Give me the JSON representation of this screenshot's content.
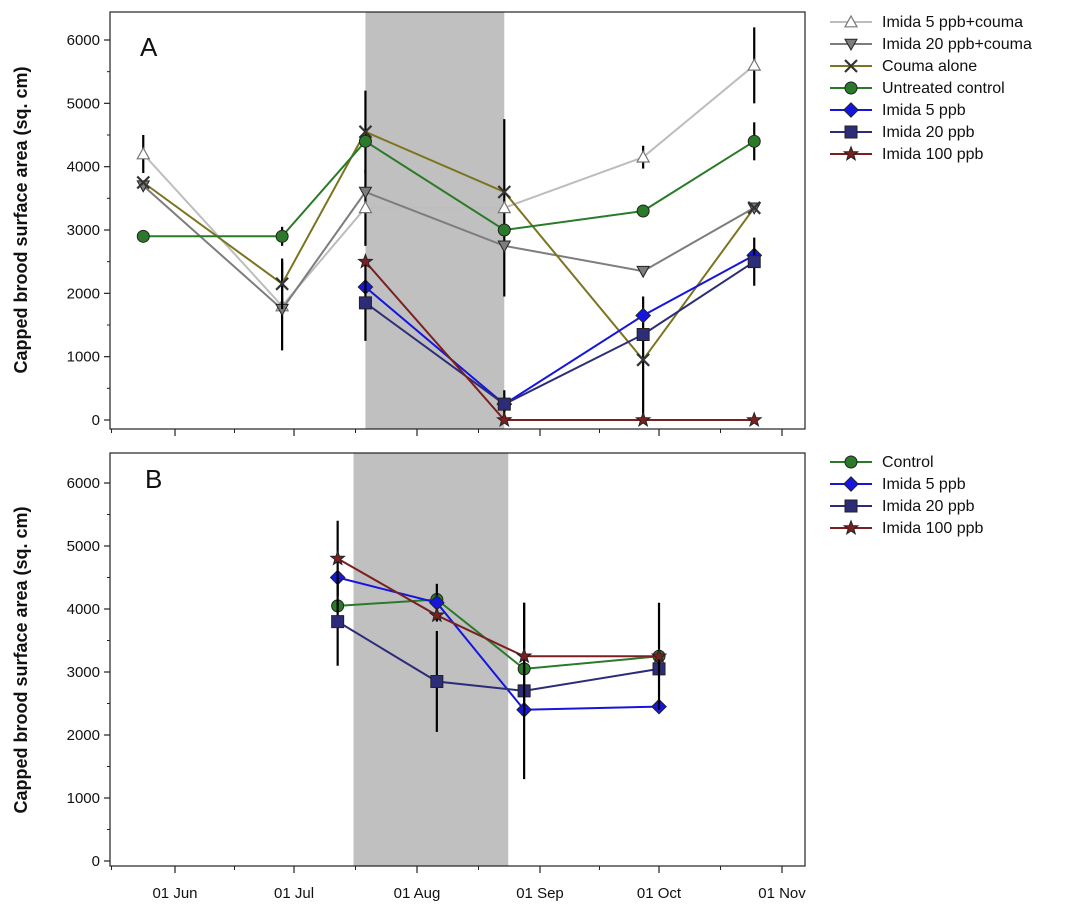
{
  "chart_data": [
    {
      "panel": "A",
      "type": "line",
      "ylabel": "Capped brood surface area (sq. cm)",
      "xlabel": "",
      "ylim": [
        0,
        6000
      ],
      "y_ticks": [
        "0",
        "1000",
        "2000",
        "3000",
        "4000",
        "5000",
        "6000"
      ],
      "x_ticks": [
        "01 Jun",
        "01 Jul",
        "01 Aug",
        "01 Sep",
        "01 Oct",
        "01 Nov"
      ],
      "x_tick_dates": [
        "2013-06-01",
        "2013-07-01",
        "2013-08-01",
        "2013-09-01",
        "2013-10-01",
        "2013-11-01"
      ],
      "shaded_period": [
        "2013-07-19",
        "2013-08-23"
      ],
      "legend_position": "right",
      "grid": false,
      "series": [
        {
          "name": "Imida 5 ppb+couma",
          "color": "#bdbdbd",
          "marker": "triangle-up-open",
          "x": [
            "2013-05-24",
            "2013-06-28",
            "2013-07-19",
            "2013-08-23",
            "2013-09-27",
            "2013-10-25"
          ],
          "y": [
            4200,
            1800,
            3350,
            3350,
            4150,
            5600
          ],
          "err": [
            300,
            700,
            600,
            1400,
            180,
            600
          ]
        },
        {
          "name": "Imida 20 ppb+couma",
          "color": "#7d7d7d",
          "marker": "triangle-down",
          "x": [
            "2013-05-24",
            "2013-06-28",
            "2013-07-19",
            "2013-08-23",
            "2013-09-27",
            "2013-10-25"
          ],
          "y": [
            3700,
            1750,
            3600,
            2750,
            2350,
            3350
          ],
          "err": [
            0,
            0,
            0,
            0,
            0,
            0
          ]
        },
        {
          "name": "Couma alone",
          "color": "#7b7421",
          "marker": "x",
          "x": [
            "2013-05-24",
            "2013-06-28",
            "2013-07-19",
            "2013-08-23",
            "2013-09-27",
            "2013-10-25"
          ],
          "y": [
            3750,
            2150,
            4550,
            3600,
            950,
            3350
          ],
          "err": [
            0,
            400,
            650,
            0,
            1000,
            0
          ]
        },
        {
          "name": "Untreated control",
          "color": "#2a7a2a",
          "marker": "circle",
          "x": [
            "2013-05-24",
            "2013-06-28",
            "2013-07-19",
            "2013-08-23",
            "2013-09-27",
            "2013-10-25"
          ],
          "y": [
            2900,
            2900,
            4400,
            3000,
            3300,
            4400
          ],
          "err": [
            0,
            150,
            0,
            0,
            0,
            300
          ]
        },
        {
          "name": "Imida 5 ppb",
          "color": "#1515e0",
          "marker": "diamond",
          "x": [
            "2013-07-19",
            "2013-08-23",
            "2013-09-27",
            "2013-10-25"
          ],
          "y": [
            2100,
            250,
            1650,
            2600
          ],
          "err": [
            0,
            0,
            0,
            0
          ]
        },
        {
          "name": "Imida 20 ppb",
          "color": "#2c2c78",
          "marker": "square",
          "x": [
            "2013-07-19",
            "2013-08-23",
            "2013-09-27",
            "2013-10-25"
          ],
          "y": [
            1850,
            250,
            1350,
            2500
          ],
          "err": [
            600,
            220,
            0,
            380
          ]
        },
        {
          "name": "Imida 100 ppb",
          "color": "#7a2020",
          "marker": "star",
          "x": [
            "2013-07-19",
            "2013-08-23",
            "2013-09-27",
            "2013-10-25"
          ],
          "y": [
            2500,
            0,
            0,
            0
          ],
          "err": [
            0,
            0,
            0,
            0
          ]
        }
      ]
    },
    {
      "panel": "B",
      "type": "line",
      "ylabel": "Capped brood surface area (sq. cm)",
      "xlabel": "",
      "ylim": [
        0,
        6000
      ],
      "y_ticks": [
        "0",
        "1000",
        "2000",
        "3000",
        "4000",
        "5000",
        "6000"
      ],
      "x_ticks": [
        "01 Jun",
        "01 Jul",
        "01 Aug",
        "01 Sep",
        "01 Oct",
        "01 Nov"
      ],
      "x_tick_dates": [
        "2013-06-01",
        "2013-07-01",
        "2013-08-01",
        "2013-09-01",
        "2013-10-01",
        "2013-11-01"
      ],
      "shaded_period": [
        "2013-07-16",
        "2013-08-24"
      ],
      "legend_position": "right",
      "grid": false,
      "series": [
        {
          "name": "Control",
          "color": "#2a7a2a",
          "marker": "circle",
          "x": [
            "2013-07-12",
            "2013-08-06",
            "2013-08-28",
            "2013-10-01"
          ],
          "y": [
            4050,
            4150,
            3050,
            3250
          ],
          "err": [
            0,
            0,
            0,
            0
          ]
        },
        {
          "name": "Imida 5 ppb",
          "color": "#1515e0",
          "marker": "diamond",
          "x": [
            "2013-07-12",
            "2013-08-06",
            "2013-08-28",
            "2013-10-01"
          ],
          "y": [
            4500,
            4100,
            2400,
            2450
          ],
          "err": [
            0,
            300,
            0,
            0
          ]
        },
        {
          "name": "Imida 20 ppb",
          "color": "#2c2c78",
          "marker": "square",
          "x": [
            "2013-07-12",
            "2013-08-06",
            "2013-08-28",
            "2013-10-01"
          ],
          "y": [
            3800,
            2850,
            2700,
            3050
          ],
          "err": [
            700,
            800,
            1400,
            0
          ]
        },
        {
          "name": "Imida 100 ppb",
          "color": "#7a2020",
          "marker": "star",
          "x": [
            "2013-07-12",
            "2013-08-06",
            "2013-08-28",
            "2013-10-01"
          ],
          "y": [
            4800,
            3900,
            3250,
            3250
          ],
          "err": [
            600,
            0,
            850,
            850
          ]
        }
      ]
    }
  ]
}
